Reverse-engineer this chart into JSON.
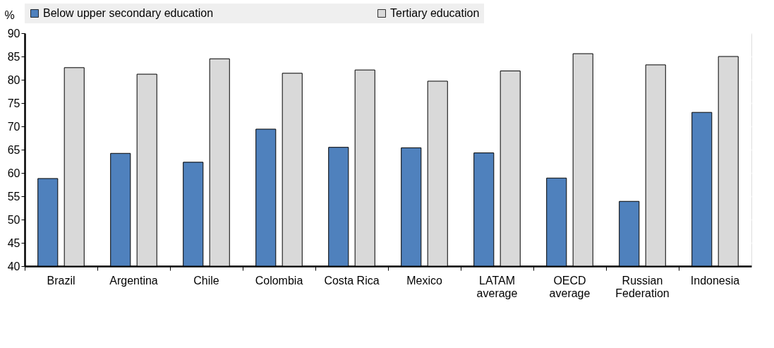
{
  "chart_data": {
    "type": "bar",
    "ylabel": "%",
    "categories": [
      "Brazil",
      "Argentina",
      "Chile",
      "Colombia",
      "Costa Rica",
      "Mexico",
      "LATAM average",
      "OECD average",
      "Russian Federation",
      "Indonesia"
    ],
    "series": [
      {
        "name": "Below upper secondary education",
        "color": "#4f81bd",
        "values": [
          58.8,
          64.2,
          62.3,
          69.4,
          65.5,
          65.4,
          64.3,
          58.9,
          53.9,
          73.0
        ]
      },
      {
        "name": "Tertiary education",
        "color": "#d9d9d9",
        "values": [
          82.6,
          81.2,
          84.5,
          81.4,
          82.1,
          79.7,
          81.9,
          85.6,
          83.2,
          85.0
        ]
      }
    ],
    "ylim": [
      40,
      90
    ],
    "yticks": [
      40,
      45,
      50,
      55,
      60,
      65,
      70,
      75,
      80,
      85,
      90
    ],
    "grid": true,
    "legend": "top"
  }
}
